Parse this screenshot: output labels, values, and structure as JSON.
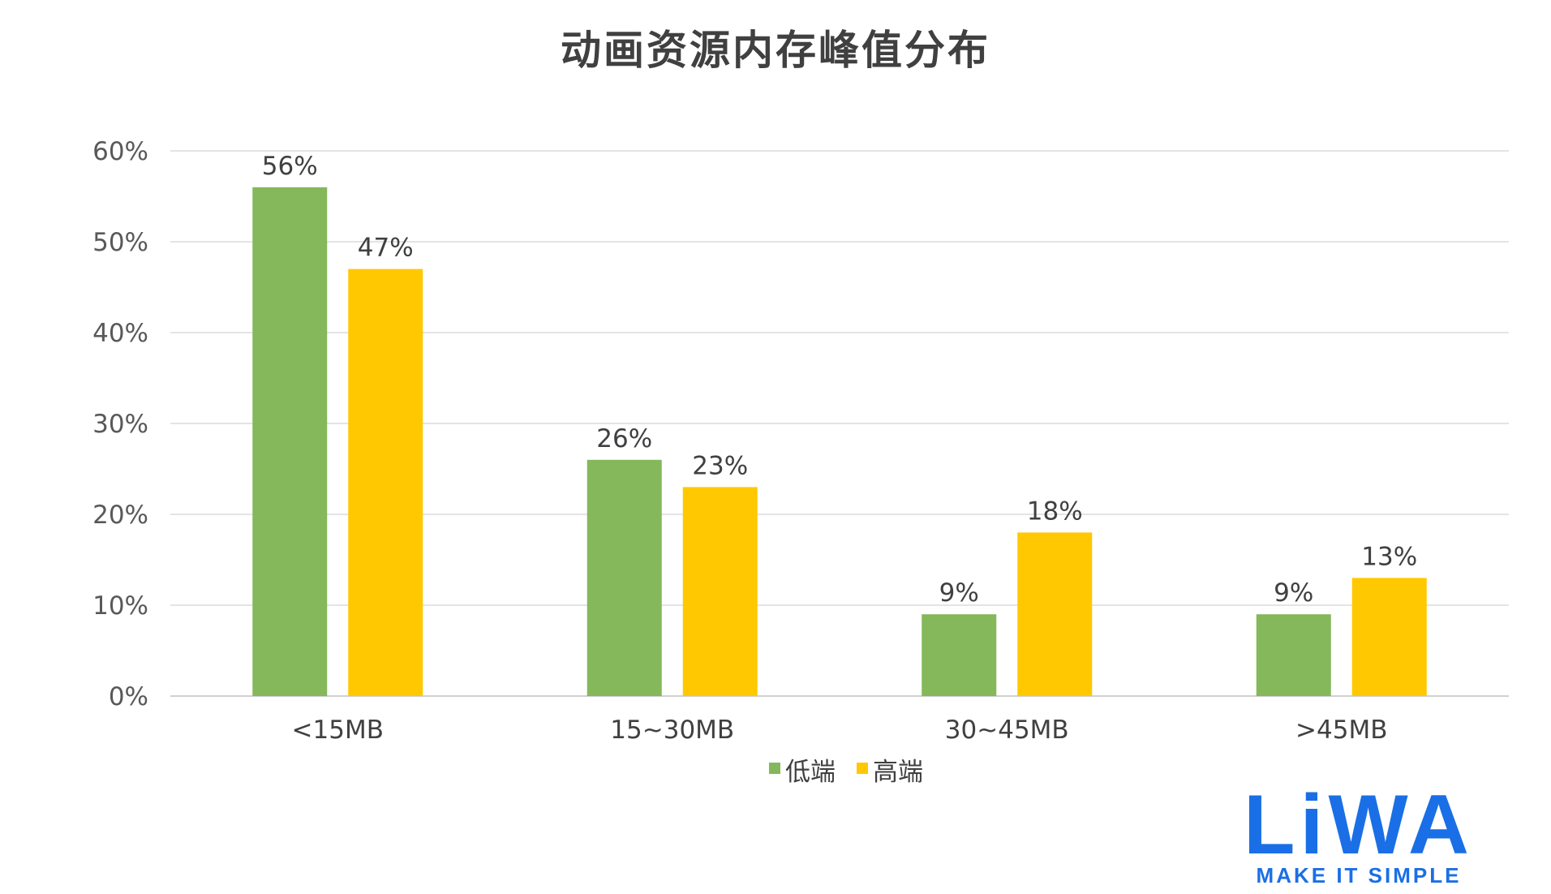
{
  "chart_data": {
    "type": "bar",
    "title": "动画资源内存峰值分布",
    "categories": [
      "<15MB",
      "15~30MB",
      "30~45MB",
      ">45MB"
    ],
    "series": [
      {
        "name": "低端",
        "color": "#84b85a",
        "values": [
          56,
          26,
          9,
          9
        ],
        "labels": [
          "56%",
          "26%",
          "9%",
          "9%"
        ]
      },
      {
        "name": "高端",
        "color": "#ffc800",
        "values": [
          47,
          23,
          18,
          13
        ],
        "labels": [
          "47%",
          "23%",
          "18%",
          "13%"
        ]
      }
    ],
    "ylim": [
      0,
      60
    ],
    "yticks": [
      0,
      10,
      20,
      30,
      40,
      50,
      60
    ],
    "ytick_labels": [
      "0%",
      "10%",
      "20%",
      "30%",
      "40%",
      "50%",
      "60%"
    ],
    "xlabel": "",
    "ylabel": "",
    "grid": true,
    "legend_position": "bottom"
  },
  "logo": {
    "text": "LiWA",
    "tagline": "MAKE IT SIMPLE",
    "color": "#1a6fe6"
  }
}
